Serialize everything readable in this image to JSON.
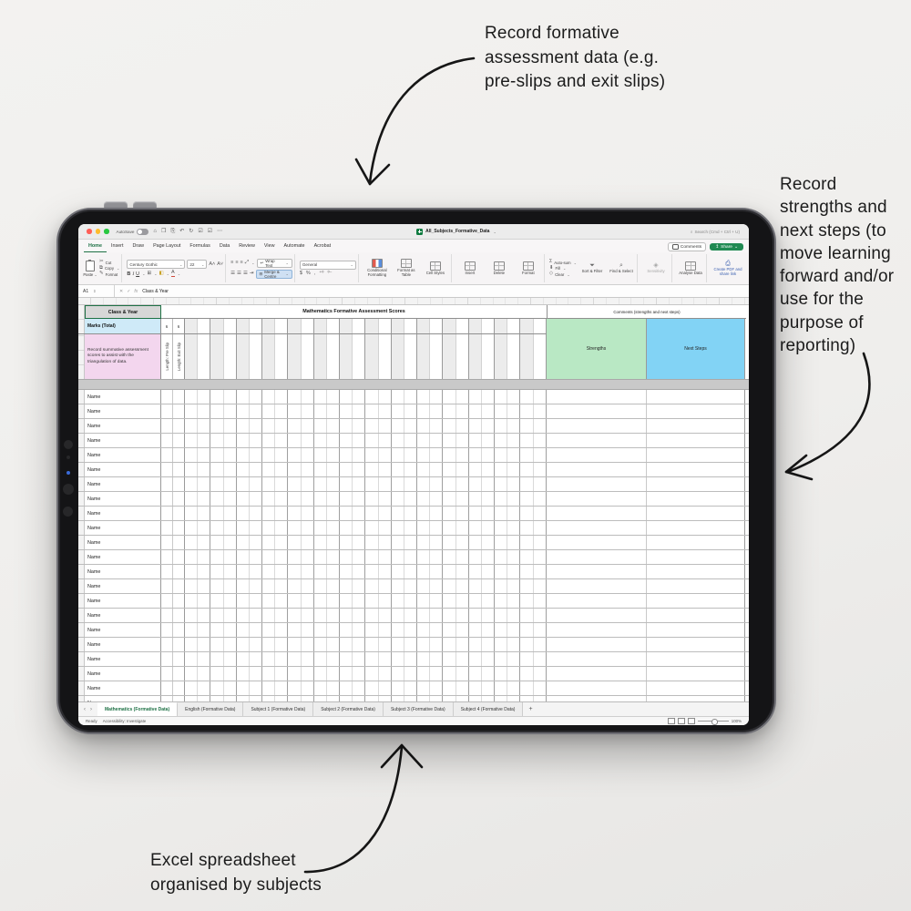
{
  "annotations": {
    "top": {
      "lines": [
        "Record formative",
        "assessment data (e.g.",
        "pre-slips and exit slips)"
      ]
    },
    "right": {
      "lines": [
        "Record",
        "strengths and",
        "next steps (to",
        "move learning",
        "forward and/or",
        "use for the",
        "purpose of",
        "reporting)"
      ]
    },
    "bottom": {
      "lines": [
        "Excel spreadsheet",
        "organised by subjects"
      ]
    }
  },
  "excel": {
    "titlebar": {
      "autosave_label": "AutoSave",
      "doc_title": "All_Subjects_Formative_Data",
      "search_label": "Search (Cmd + Ctrl + U)"
    },
    "ribbon_tabs": [
      {
        "label": "Home",
        "active": true
      },
      {
        "label": "Insert",
        "active": false
      },
      {
        "label": "Draw",
        "active": false
      },
      {
        "label": "Page Layout",
        "active": false
      },
      {
        "label": "Formulas",
        "active": false
      },
      {
        "label": "Data",
        "active": false
      },
      {
        "label": "Review",
        "active": false
      },
      {
        "label": "View",
        "active": false
      },
      {
        "label": "Automate",
        "active": false
      },
      {
        "label": "Acrobat",
        "active": false
      }
    ],
    "comments_label": "Comments",
    "share_label": "Share",
    "toolbar": {
      "paste": "Paste",
      "cut": "Cut",
      "copy": "Copy",
      "format_painter": "Format",
      "font_name": "Century Gothic",
      "font_size": "22",
      "bold": "B",
      "italic": "I",
      "underline": "U",
      "wrap_text": "Wrap Text",
      "merge_centre": "Merge & Centre",
      "number_format": "General",
      "currency": "$",
      "percent": "%",
      "comma": ",",
      "conditional_formatting": "Conditional Formatting",
      "format_as_table": "Format as Table",
      "cell_styles": "Cell Styles",
      "insert": "Insert",
      "delete": "Delete",
      "format": "Format",
      "auto_sum": "Auto-sum",
      "fill": "Fill",
      "clear": "Clear",
      "sort_filter": "Sort & Filter",
      "find_select": "Find & Select",
      "sensitivity": "Sensitivity",
      "analyse": "Analyse Data",
      "create_pdf": "Create PDF and share link"
    },
    "formula_bar": {
      "cell_ref": "A1",
      "value": "Class & Year"
    },
    "sheet": {
      "header": {
        "class_year": "Class & Year",
        "math_title": "Mathematics Formative Assessment Scores",
        "comments_title": "Comments (strengths and next steps)",
        "marks_label": "Marks (Total)",
        "marks_values": [
          "6",
          "6"
        ],
        "note": "Record summative assessment scores to assist with the triangulation of data.",
        "vertical_labels": [
          "Length: Pre Slip",
          "Length: Exit Slip"
        ],
        "strengths": "Strengths",
        "next_steps": "Next Steps"
      },
      "rows": [
        "Name",
        "Name",
        "Name",
        "Name",
        "Name",
        "Name",
        "Name",
        "Name",
        "Name",
        "Name",
        "Name",
        "Name",
        "Name",
        "Name",
        "Name",
        "Name",
        "Name",
        "Name",
        "Name",
        "Name",
        "Name",
        "Name"
      ],
      "stripe_pairs": 14,
      "colors": {
        "excel_green": "#1e7145",
        "share_green": "#218a53",
        "marks_bg": "#cfeaf8",
        "note_bg": "#f3d6ee",
        "strengths_bg": "#b9e8c4",
        "next_steps_bg": "#82d3f5",
        "selected_header_bg": "#d7d7d7"
      }
    },
    "sheet_tabs": {
      "items": [
        {
          "label": "Mathematics (Formative Data)",
          "active": true
        },
        {
          "label": "English (Formative Data)",
          "active": false
        },
        {
          "label": "Subject 1 (Formative Data)",
          "active": false
        },
        {
          "label": "Subject 2 (Formative Data)",
          "active": false
        },
        {
          "label": "Subject 3 (Formative Data)",
          "active": false
        },
        {
          "label": "Subject 4 (Formative Data)",
          "active": false
        }
      ],
      "add_label": "+"
    },
    "status_bar": {
      "ready": "Ready",
      "accessibility": "Accessibility: Investigate",
      "zoom": "100%"
    }
  }
}
